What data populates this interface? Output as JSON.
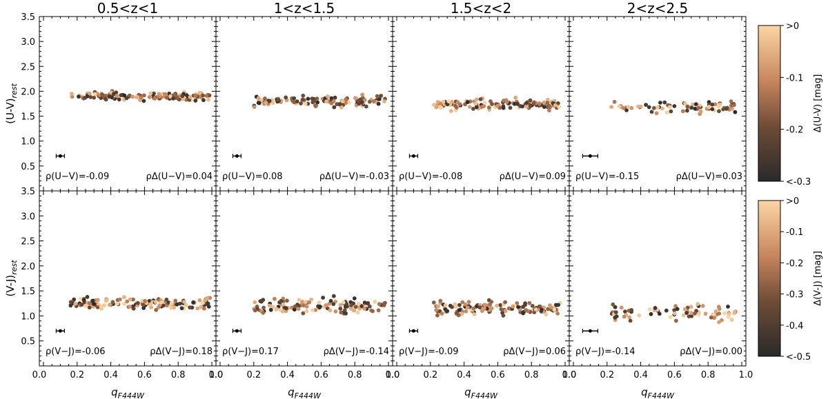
{
  "chart_data": {
    "type": "scatter",
    "panel_titles": [
      "0.5<z<1",
      "1<z<1.5",
      "1.5<z<2",
      "2<z<2.5"
    ],
    "xlabel": "q_F444W",
    "xlim": [
      0.0,
      1.0
    ],
    "xticks": [
      "0.0",
      "0.2",
      "0.4",
      "0.6",
      "0.8",
      "1.0"
    ],
    "ylim": [
      0.0,
      3.5
    ],
    "yticks": [
      "0.5",
      "1.0",
      "1.5",
      "2.0",
      "2.5",
      "3.0",
      "3.5"
    ],
    "rows": [
      {
        "ylabel": "(U-V)_rest",
        "error_bar": {
          "x": 0.1,
          "y": 0.7
        },
        "colorbar": {
          "label": "Δ(U-V) [mag]",
          "min": -0.3,
          "max": 0.0,
          "ticks": [
            ">0",
            "-0.1",
            "-0.2",
            "<-0.3"
          ]
        },
        "rho_left_prefix": "ρ(U−V)",
        "rho_right_prefix": "ρΔ(U−V)",
        "rho_left": [
          "=-0.09",
          "=0.08",
          "=-0.08",
          "=-0.15"
        ],
        "rho_right": [
          "=0.04",
          "=-0.03",
          "=0.09",
          "=0.03"
        ],
        "panels": [
          {
            "n": 130,
            "x_range": [
              0.16,
              1.0
            ],
            "y_mean": 1.9,
            "y_spread": 0.1
          },
          {
            "n": 120,
            "x_range": [
              0.2,
              0.98
            ],
            "y_mean": 1.8,
            "y_spread": 0.13
          },
          {
            "n": 125,
            "x_range": [
              0.22,
              0.98
            ],
            "y_mean": 1.74,
            "y_spread": 0.13
          },
          {
            "n": 75,
            "x_range": [
              0.22,
              0.97
            ],
            "y_mean": 1.67,
            "y_spread": 0.14
          }
        ]
      },
      {
        "ylabel": "(V-J)_rest",
        "error_bar": {
          "x": 0.1,
          "y": 0.7
        },
        "colorbar": {
          "label": "Δ(V-J) [mag]",
          "min": -0.5,
          "max": 0.0,
          "ticks": [
            ">0",
            "-0.1",
            "-0.2",
            "-0.3",
            "-0.4",
            "<-0.5"
          ]
        },
        "rho_left_prefix": "ρ(V−J)",
        "rho_right_prefix": "ρΔ(V−J)",
        "rho_left": [
          "=-0.06",
          "=0.17",
          "=-0.09",
          "=-0.14"
        ],
        "rho_right": [
          "=0.18",
          "=-0.14",
          "=0.06",
          "=0.00"
        ],
        "panels": [
          {
            "n": 130,
            "x_range": [
              0.16,
              1.0
            ],
            "y_mean": 1.25,
            "y_spread": 0.14
          },
          {
            "n": 120,
            "x_range": [
              0.2,
              0.98
            ],
            "y_mean": 1.2,
            "y_spread": 0.16
          },
          {
            "n": 125,
            "x_range": [
              0.22,
              0.98
            ],
            "y_mean": 1.15,
            "y_spread": 0.17
          },
          {
            "n": 75,
            "x_range": [
              0.22,
              0.97
            ],
            "y_mean": 1.08,
            "y_spread": 0.2
          }
        ]
      }
    ]
  }
}
